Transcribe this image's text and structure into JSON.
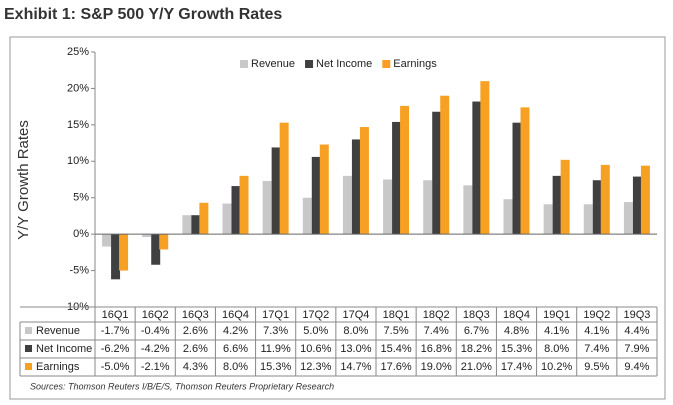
{
  "chart_data": {
    "type": "bar",
    "title": "Exhibit 1: S&P 500 Y/Y Growth Rates",
    "y_label": "Y/Y Growth Rates",
    "source": "Sources: Thomson Reuters I/B/E/S, Thomson Reuters Proprietary Research",
    "categories": [
      "16Q1",
      "16Q2",
      "16Q3",
      "16Q4",
      "17Q1",
      "17Q2",
      "17Q4",
      "18Q1",
      "18Q2",
      "18Q3",
      "18Q4",
      "19Q1",
      "19Q2",
      "19Q3"
    ],
    "series": [
      {
        "name": "Revenue",
        "color": "#c8c8c8",
        "values": [
          -1.7,
          -0.4,
          2.6,
          4.2,
          7.3,
          5.0,
          8.0,
          7.5,
          7.4,
          6.7,
          4.8,
          4.1,
          4.1,
          4.4
        ],
        "value_labels": [
          "-1.7%",
          "-0.4%",
          "2.6%",
          "4.2%",
          "7.3%",
          "5.0%",
          "8.0%",
          "7.5%",
          "7.4%",
          "6.7%",
          "4.8%",
          "4.1%",
          "4.1%",
          "4.4%"
        ]
      },
      {
        "name": "Net Income",
        "color": "#404040",
        "values": [
          -6.2,
          -4.2,
          2.6,
          6.6,
          11.9,
          10.6,
          13.0,
          15.4,
          16.8,
          18.2,
          15.3,
          8.0,
          7.4,
          7.9
        ],
        "value_labels": [
          "-6.2%",
          "-4.2%",
          "2.6%",
          "6.6%",
          "11.9%",
          "10.6%",
          "13.0%",
          "15.4%",
          "16.8%",
          "18.2%",
          "15.3%",
          "8.0%",
          "7.4%",
          "7.9%"
        ]
      },
      {
        "name": "Earnings",
        "color": "#f7a124",
        "values": [
          -5.0,
          -2.1,
          4.3,
          8.0,
          15.3,
          12.3,
          14.7,
          17.6,
          19.0,
          21.0,
          17.4,
          10.2,
          9.5,
          9.4
        ],
        "value_labels": [
          "-5.0%",
          "-2.1%",
          "4.3%",
          "8.0%",
          "15.3%",
          "12.3%",
          "14.7%",
          "17.6%",
          "19.0%",
          "21.0%",
          "17.4%",
          "10.2%",
          "9.5%",
          "9.4%"
        ]
      }
    ],
    "ylim": [
      -10,
      25
    ],
    "yticks": [
      {
        "value": -10,
        "label": "-10%"
      },
      {
        "value": -5,
        "label": "-5%"
      },
      {
        "value": 0,
        "label": "0%"
      },
      {
        "value": 5,
        "label": "5%"
      },
      {
        "value": 10,
        "label": "10%"
      },
      {
        "value": 15,
        "label": "15%"
      },
      {
        "value": 20,
        "label": "20%"
      },
      {
        "value": 25,
        "label": "25%"
      }
    ],
    "grid": false,
    "legend": "top"
  }
}
